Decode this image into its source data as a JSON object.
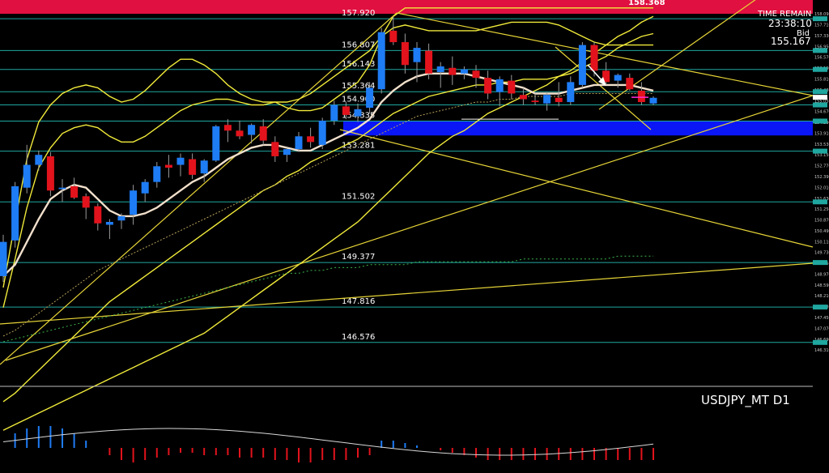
{
  "symbol_label": "USDJPY_MT D1",
  "timer": {
    "caption": "TIME REMAIN",
    "value": "23:38:10",
    "price_caption": "Bid",
    "price": "155.167"
  },
  "banner": {
    "price": "158.368",
    "left_label": "157.920"
  },
  "colors": {
    "background": "#000000",
    "bull": "#1e7cf5",
    "bear": "#e2131c",
    "ma": "#f2e0cc",
    "band": "#f0ea3a",
    "trend": "#e6d437",
    "level_line": "#1fa7a0",
    "zone": "#0a16f5",
    "banner": "#e01040",
    "bid_line": "#ff2bd6",
    "axis_text": "#c8c8c8"
  },
  "chart_data": {
    "type": "candlestick",
    "title": "USDJPY_MT D1",
    "ylim": [
      145.35,
      158.35
    ],
    "bid": 155.167,
    "levels": [
      {
        "price": 157.92,
        "label": "157.920"
      },
      {
        "price": 156.807,
        "label": "156.807"
      },
      {
        "price": 156.143,
        "label": "156.143"
      },
      {
        "price": 155.364,
        "label": "155.364"
      },
      {
        "price": 154.9,
        "label": "154.900"
      },
      {
        "price": 154.335,
        "label": "154.335"
      },
      {
        "price": 153.281,
        "label": "153.281"
      },
      {
        "price": 151.502,
        "label": "151.502"
      },
      {
        "price": 149.377,
        "label": "149.377"
      },
      {
        "price": 147.816,
        "label": "147.816"
      },
      {
        "price": 146.576,
        "label": "146.576"
      }
    ],
    "zone": [
      153.83,
      154.33
    ],
    "y_ticks": [
      "158.090",
      "157.710",
      "157.330",
      "156.950",
      "156.570",
      "156.190",
      "155.810",
      "155.430",
      "155.050",
      "154.670",
      "154.290",
      "153.910",
      "153.530",
      "153.150",
      "152.770",
      "152.390",
      "152.010",
      "151.630",
      "151.250",
      "150.870",
      "150.490",
      "150.110",
      "149.730",
      "149.350",
      "148.970",
      "148.590",
      "148.210",
      "147.830",
      "147.450",
      "147.070",
      "146.690",
      "146.310"
    ],
    "candles": [
      {
        "o": 148.9,
        "h": 150.35,
        "l": 148.7,
        "c": 150.1
      },
      {
        "o": 150.15,
        "h": 152.2,
        "l": 149.9,
        "c": 152.05
      },
      {
        "o": 152.0,
        "h": 153.5,
        "l": 151.8,
        "c": 152.8
      },
      {
        "o": 152.8,
        "h": 153.3,
        "l": 152.6,
        "c": 153.15
      },
      {
        "o": 153.1,
        "h": 153.25,
        "l": 151.7,
        "c": 151.9
      },
      {
        "o": 151.95,
        "h": 152.3,
        "l": 151.5,
        "c": 152.0
      },
      {
        "o": 152.05,
        "h": 152.35,
        "l": 151.6,
        "c": 151.65
      },
      {
        "o": 151.7,
        "h": 151.8,
        "l": 150.9,
        "c": 151.3
      },
      {
        "o": 151.35,
        "h": 151.45,
        "l": 150.5,
        "c": 150.75
      },
      {
        "o": 150.7,
        "h": 150.9,
        "l": 150.2,
        "c": 150.8
      },
      {
        "o": 150.85,
        "h": 151.1,
        "l": 150.55,
        "c": 151.0
      },
      {
        "o": 151.05,
        "h": 152.1,
        "l": 150.7,
        "c": 151.9
      },
      {
        "o": 151.8,
        "h": 152.3,
        "l": 151.5,
        "c": 152.2
      },
      {
        "o": 152.2,
        "h": 152.9,
        "l": 152.0,
        "c": 152.75
      },
      {
        "o": 152.8,
        "h": 153.15,
        "l": 152.35,
        "c": 152.7
      },
      {
        "o": 152.8,
        "h": 153.2,
        "l": 152.4,
        "c": 153.05
      },
      {
        "o": 153.0,
        "h": 153.2,
        "l": 152.3,
        "c": 152.45
      },
      {
        "o": 152.5,
        "h": 153.0,
        "l": 152.2,
        "c": 152.95
      },
      {
        "o": 152.95,
        "h": 154.2,
        "l": 152.9,
        "c": 154.15
      },
      {
        "o": 154.2,
        "h": 154.4,
        "l": 153.6,
        "c": 154.0
      },
      {
        "o": 154.0,
        "h": 154.35,
        "l": 153.7,
        "c": 153.8
      },
      {
        "o": 153.85,
        "h": 154.25,
        "l": 153.55,
        "c": 154.2
      },
      {
        "o": 154.15,
        "h": 154.4,
        "l": 153.5,
        "c": 153.65
      },
      {
        "o": 153.6,
        "h": 153.8,
        "l": 152.9,
        "c": 153.1
      },
      {
        "o": 153.15,
        "h": 153.4,
        "l": 152.9,
        "c": 153.35
      },
      {
        "o": 153.35,
        "h": 153.95,
        "l": 153.25,
        "c": 153.8
      },
      {
        "o": 153.8,
        "h": 154.1,
        "l": 153.4,
        "c": 153.6
      },
      {
        "o": 153.5,
        "h": 154.45,
        "l": 153.35,
        "c": 154.35
      },
      {
        "o": 154.35,
        "h": 155.05,
        "l": 154.2,
        "c": 154.9
      },
      {
        "o": 154.85,
        "h": 155.0,
        "l": 154.4,
        "c": 154.55
      },
      {
        "o": 154.5,
        "h": 154.95,
        "l": 154.3,
        "c": 154.75
      },
      {
        "o": 154.8,
        "h": 155.7,
        "l": 154.6,
        "c": 155.5
      },
      {
        "o": 155.45,
        "h": 157.6,
        "l": 155.3,
        "c": 157.45
      },
      {
        "o": 157.5,
        "h": 158.0,
        "l": 157.0,
        "c": 157.1
      },
      {
        "o": 157.1,
        "h": 157.4,
        "l": 156.0,
        "c": 156.3
      },
      {
        "o": 156.4,
        "h": 157.1,
        "l": 155.7,
        "c": 156.9
      },
      {
        "o": 156.8,
        "h": 157.05,
        "l": 155.8,
        "c": 156.0
      },
      {
        "o": 156.05,
        "h": 156.4,
        "l": 155.5,
        "c": 156.25
      },
      {
        "o": 156.2,
        "h": 156.6,
        "l": 155.6,
        "c": 155.95
      },
      {
        "o": 156.0,
        "h": 156.25,
        "l": 155.8,
        "c": 156.15
      },
      {
        "o": 156.1,
        "h": 156.3,
        "l": 155.5,
        "c": 155.85
      },
      {
        "o": 155.85,
        "h": 156.1,
        "l": 155.1,
        "c": 155.3
      },
      {
        "o": 155.35,
        "h": 155.9,
        "l": 154.85,
        "c": 155.8
      },
      {
        "o": 155.75,
        "h": 155.95,
        "l": 155.1,
        "c": 155.3
      },
      {
        "o": 155.25,
        "h": 155.5,
        "l": 154.9,
        "c": 155.1
      },
      {
        "o": 155.05,
        "h": 155.3,
        "l": 154.9,
        "c": 155.0
      },
      {
        "o": 154.95,
        "h": 155.35,
        "l": 154.7,
        "c": 155.25
      },
      {
        "o": 155.15,
        "h": 155.7,
        "l": 154.85,
        "c": 155.0
      },
      {
        "o": 155.0,
        "h": 155.9,
        "l": 154.9,
        "c": 155.7
      },
      {
        "o": 155.6,
        "h": 157.1,
        "l": 155.5,
        "c": 157.0
      },
      {
        "o": 157.0,
        "h": 157.1,
        "l": 155.9,
        "c": 156.1
      },
      {
        "o": 156.1,
        "h": 156.4,
        "l": 155.6,
        "c": 155.7
      },
      {
        "o": 155.75,
        "h": 156.0,
        "l": 155.5,
        "c": 155.95
      },
      {
        "o": 155.85,
        "h": 156.0,
        "l": 155.4,
        "c": 155.45
      },
      {
        "o": 155.4,
        "h": 155.7,
        "l": 154.9,
        "c": 155.0
      },
      {
        "o": 154.95,
        "h": 155.2,
        "l": 154.9,
        "c": 155.15
      }
    ],
    "ma_fast": [
      148.9,
      149.3,
      150.1,
      150.9,
      151.6,
      151.9,
      152.1,
      152.0,
      151.6,
      151.2,
      151.0,
      151.0,
      151.1,
      151.3,
      151.6,
      151.9,
      152.2,
      152.4,
      152.7,
      153.0,
      153.2,
      153.4,
      153.5,
      153.5,
      153.4,
      153.3,
      153.3,
      153.5,
      153.7,
      153.9,
      154.1,
      154.4,
      155.0,
      155.4,
      155.7,
      155.9,
      156.0,
      156.0,
      156.0,
      156.0,
      155.9,
      155.8,
      155.7,
      155.6,
      155.5,
      155.3,
      155.3,
      155.3,
      155.4,
      155.5,
      155.6,
      155.6,
      155.6,
      155.6,
      155.5,
      155.4
    ],
    "ma_slow": [
      146.8,
      147.0,
      147.3,
      147.6,
      147.9,
      148.2,
      148.5,
      148.8,
      149.1,
      149.3,
      149.5,
      149.7,
      149.9,
      150.1,
      150.3,
      150.5,
      150.7,
      150.9,
      151.1,
      151.3,
      151.5,
      151.7,
      151.9,
      152.1,
      152.3,
      152.5,
      152.7,
      152.9,
      153.1,
      153.3,
      153.5,
      153.7,
      153.9,
      154.1,
      154.3,
      154.5,
      154.6,
      154.7,
      154.8,
      154.9,
      155.0,
      155.0,
      155.1,
      155.1,
      155.2,
      155.2,
      155.2,
      155.2,
      155.3,
      155.3,
      155.3,
      155.3,
      155.3,
      155.3,
      155.3,
      155.3
    ],
    "dotted_green": [
      146.6,
      146.7,
      146.8,
      146.9,
      147.0,
      147.1,
      147.2,
      147.3,
      147.4,
      147.5,
      147.6,
      147.7,
      147.8,
      147.9,
      148.0,
      148.1,
      148.2,
      148.3,
      148.4,
      148.5,
      148.6,
      148.7,
      148.8,
      148.9,
      149.0,
      149.0,
      149.1,
      149.1,
      149.2,
      149.2,
      149.2,
      149.3,
      149.3,
      149.3,
      149.3,
      149.4,
      149.4,
      149.4,
      149.4,
      149.4,
      149.4,
      149.4,
      149.4,
      149.4,
      149.5,
      149.5,
      149.5,
      149.5,
      149.5,
      149.5,
      149.5,
      149.5,
      149.6,
      149.6,
      149.6,
      149.6
    ],
    "band_outer_upper": [
      148.5,
      150.8,
      153.0,
      154.3,
      154.9,
      155.3,
      155.5,
      155.6,
      155.5,
      155.2,
      155.0,
      155.1,
      155.4,
      155.8,
      156.2,
      156.5,
      156.5,
      156.3,
      156.0,
      155.6,
      155.3,
      155.1,
      155.0,
      155.0,
      154.8,
      154.7,
      154.7,
      154.8,
      155.1,
      155.4,
      155.7,
      156.3,
      157.3,
      158.0,
      158.3,
      158.3,
      158.3,
      158.3,
      158.3,
      158.3,
      158.3,
      158.3,
      158.3,
      158.3,
      158.3,
      158.3,
      158.3,
      158.3,
      158.3,
      158.3,
      158.3,
      158.3,
      158.3,
      158.3,
      158.3,
      158.3
    ],
    "band_inner_upper": [
      147.8,
      149.5,
      151.3,
      152.7,
      153.4,
      153.9,
      154.1,
      154.2,
      154.1,
      153.8,
      153.6,
      153.6,
      153.8,
      154.1,
      154.4,
      154.7,
      154.9,
      155.0,
      155.1,
      155.1,
      155.0,
      154.9,
      154.9,
      155.0,
      155.0,
      155.1,
      155.3,
      155.6,
      155.9,
      156.2,
      156.5,
      156.8,
      157.3,
      157.6,
      157.7,
      157.6,
      157.5,
      157.5,
      157.5,
      157.5,
      157.5,
      157.6,
      157.7,
      157.8,
      157.8,
      157.8,
      157.8,
      157.7,
      157.5,
      157.3,
      157.1,
      157.0,
      157.0,
      157.0,
      157.0,
      157.0
    ],
    "band_inner_lower": [
      144.5,
      144.8,
      145.2,
      145.6,
      146.0,
      146.4,
      146.8,
      147.2,
      147.6,
      148.0,
      148.3,
      148.6,
      148.9,
      149.2,
      149.5,
      149.8,
      150.1,
      150.4,
      150.7,
      151.0,
      151.3,
      151.6,
      151.9,
      152.1,
      152.4,
      152.6,
      152.9,
      153.1,
      153.3,
      153.5,
      153.7,
      154.0,
      154.3,
      154.6,
      154.8,
      155.0,
      155.2,
      155.3,
      155.4,
      155.5,
      155.6,
      155.6,
      155.7,
      155.7,
      155.8,
      155.8,
      155.8,
      155.9,
      156.0,
      156.2,
      156.4,
      156.6,
      156.9,
      157.1,
      157.3,
      157.4
    ],
    "band_outer_lower": [
      143.5,
      143.7,
      143.9,
      144.1,
      144.3,
      144.5,
      144.7,
      144.9,
      145.1,
      145.3,
      145.5,
      145.7,
      145.9,
      146.1,
      146.3,
      146.5,
      146.7,
      146.9,
      147.2,
      147.5,
      147.8,
      148.1,
      148.4,
      148.7,
      149.0,
      149.3,
      149.6,
      149.9,
      150.2,
      150.5,
      150.8,
      151.2,
      151.6,
      152.0,
      152.4,
      152.8,
      153.2,
      153.5,
      153.8,
      154.0,
      154.3,
      154.6,
      154.8,
      155.0,
      155.2,
      155.4,
      155.6,
      155.9,
      156.1,
      156.4,
      156.7,
      157.0,
      157.3,
      157.5,
      157.8,
      158.0
    ],
    "oscillator": [
      0,
      0.6,
      0.8,
      0.9,
      0.9,
      0.8,
      0.6,
      0.3,
      0.0,
      -0.3,
      -0.5,
      -0.6,
      -0.5,
      -0.4,
      -0.3,
      -0.2,
      -0.2,
      -0.3,
      -0.3,
      -0.3,
      -0.4,
      -0.4,
      -0.4,
      -0.5,
      -0.5,
      -0.6,
      -0.6,
      -0.5,
      -0.5,
      -0.5,
      -0.4,
      -0.3,
      0.3,
      0.3,
      0.2,
      0.1,
      0.0,
      -0.1,
      -0.2,
      -0.3,
      -0.4,
      -0.5,
      -0.5,
      -0.5,
      -0.5,
      -0.5,
      -0.5,
      -0.5,
      -0.5,
      -0.5,
      -0.5,
      -0.5,
      -0.5,
      -0.5,
      -0.5,
      -0.5
    ]
  }
}
